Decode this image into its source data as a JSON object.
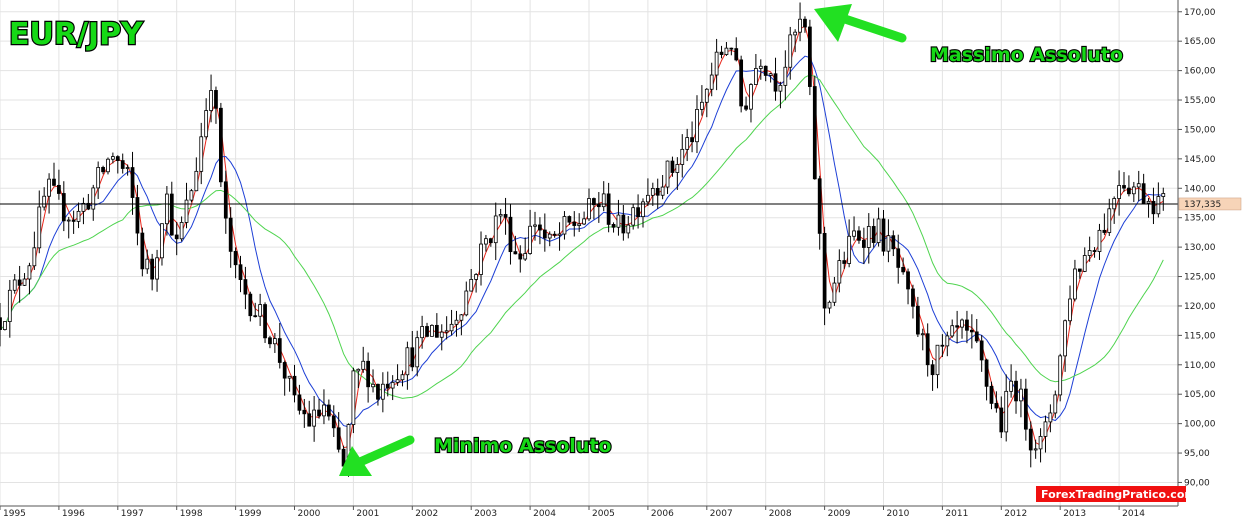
{
  "chart_data": {
    "type": "candlestick",
    "title": "EUR/JPY",
    "ylim": [
      86,
      172
    ],
    "y_ticks": [
      90,
      95,
      100,
      105,
      110,
      115,
      120,
      125,
      130,
      135,
      140,
      145,
      150,
      155,
      160,
      165,
      170
    ],
    "y_tick_labels": [
      "90,00",
      "95,00",
      "100,00",
      "105,00",
      "110,00",
      "115,00",
      "120,00",
      "125,00",
      "130,00",
      "135,00",
      "140,00",
      "145,00",
      "150,00",
      "155,00",
      "160,00",
      "165,00",
      "170,00"
    ],
    "x_labels": [
      "1995",
      "1996",
      "1997",
      "1998",
      "1999",
      "2000",
      "2001",
      "2002",
      "2003",
      "2004",
      "2005",
      "2006",
      "2007",
      "2008",
      "2009",
      "2010",
      "2011",
      "2012",
      "2013",
      "2014"
    ],
    "x_start_year": 1995,
    "x_end_year": 2015,
    "current_price": 137.335,
    "current_price_label": "137,335",
    "grid": true,
    "candle_colors": {
      "up": "#ffffff",
      "down": "#000000",
      "wick": "#000000"
    },
    "moving_averages": [
      {
        "name": "",
        "color": "#e8251a",
        "period": 3
      },
      {
        "name": "",
        "color": "#1d3fd6",
        "period": 9
      },
      {
        "name": "",
        "color": "#4fd44f",
        "period": 26
      }
    ],
    "close_anchors": [
      [
        1995.0,
        118
      ],
      [
        1995.3,
        124
      ],
      [
        1995.5,
        128
      ],
      [
        1995.8,
        140
      ],
      [
        1996.0,
        137
      ],
      [
        1996.3,
        135
      ],
      [
        1996.6,
        140
      ],
      [
        1996.9,
        146
      ],
      [
        1997.2,
        141
      ],
      [
        1997.4,
        128
      ],
      [
        1997.6,
        125
      ],
      [
        1997.8,
        140
      ],
      [
        1998.0,
        130
      ],
      [
        1998.3,
        142
      ],
      [
        1998.6,
        160
      ],
      [
        1998.8,
        135
      ],
      [
        1999.0,
        125
      ],
      [
        1999.3,
        120
      ],
      [
        1999.6,
        115
      ],
      [
        1999.8,
        110
      ],
      [
        2000.0,
        103
      ],
      [
        2000.3,
        100
      ],
      [
        2000.5,
        103
      ],
      [
        2000.7,
        96
      ],
      [
        2000.85,
        92
      ],
      [
        2001.0,
        107
      ],
      [
        2001.2,
        110
      ],
      [
        2001.4,
        105
      ],
      [
        2001.6,
        108
      ],
      [
        2001.8,
        110
      ],
      [
        2002.0,
        112
      ],
      [
        2002.3,
        116
      ],
      [
        2002.6,
        116
      ],
      [
        2002.9,
        122
      ],
      [
        2003.2,
        130
      ],
      [
        2003.5,
        136
      ],
      [
        2003.8,
        128
      ],
      [
        2004.1,
        135
      ],
      [
        2004.3,
        130
      ],
      [
        2004.6,
        133
      ],
      [
        2004.9,
        135
      ],
      [
        2005.2,
        138
      ],
      [
        2005.5,
        133
      ],
      [
        2005.8,
        137
      ],
      [
        2006.0,
        140
      ],
      [
        2006.4,
        143
      ],
      [
        2006.8,
        150
      ],
      [
        2007.1,
        160
      ],
      [
        2007.4,
        166
      ],
      [
        2007.6,
        153
      ],
      [
        2007.9,
        163
      ],
      [
        2008.2,
        158
      ],
      [
        2008.5,
        166
      ],
      [
        2008.65,
        169
      ],
      [
        2008.75,
        155
      ],
      [
        2008.85,
        140
      ],
      [
        2009.0,
        120
      ],
      [
        2009.2,
        125
      ],
      [
        2009.5,
        132
      ],
      [
        2009.9,
        133
      ],
      [
        2010.2,
        128
      ],
      [
        2010.5,
        118
      ],
      [
        2010.8,
        110
      ],
      [
        2011.0,
        112
      ],
      [
        2011.3,
        116
      ],
      [
        2011.6,
        112
      ],
      [
        2011.8,
        105
      ],
      [
        2012.0,
        100
      ],
      [
        2012.2,
        108
      ],
      [
        2012.5,
        98
      ],
      [
        2012.7,
        96
      ],
      [
        2012.95,
        108
      ],
      [
        2013.2,
        125
      ],
      [
        2013.5,
        130
      ],
      [
        2013.8,
        135
      ],
      [
        2014.0,
        142
      ],
      [
        2014.3,
        140
      ],
      [
        2014.6,
        138
      ],
      [
        2014.8,
        137
      ]
    ]
  },
  "annotations": {
    "top": "Massimo Assoluto",
    "bottom": "Minimo Assoluto"
  },
  "credit": "ForexTradingPratico.com",
  "colors": {
    "title": "#16d916",
    "annotation": "#16d916",
    "arrow": "#22e022",
    "credit_bg": "#f01010",
    "grid": "#e3e3e3",
    "price_tag": "#f7d4b8"
  }
}
